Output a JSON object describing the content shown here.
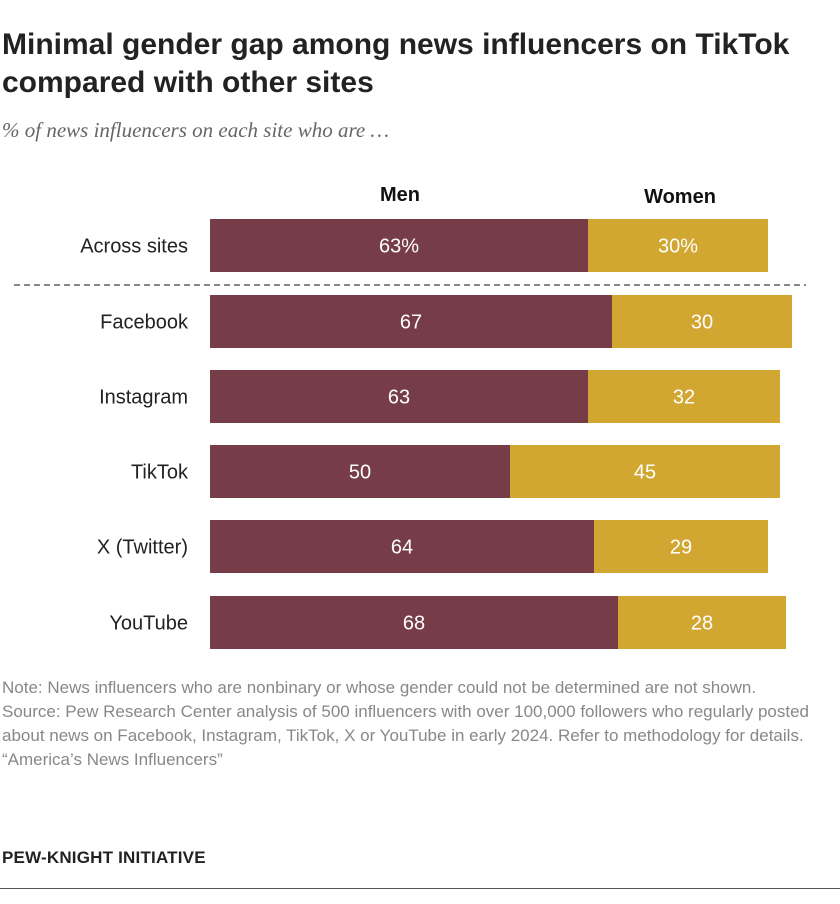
{
  "title": "Minimal gender gap among news influencers on TikTok compared with other sites",
  "subtitle": "% of news influencers on each site who are …",
  "colors": {
    "men": "#763d48",
    "women": "#d1a732",
    "label_on_bar": "#ffffff",
    "divider": "#888888"
  },
  "chart_data": {
    "type": "bar",
    "orientation": "horizontal",
    "stacked": true,
    "categories": [
      "Across sites",
      "Facebook",
      "Instagram",
      "TikTok",
      "X (Twitter)",
      "YouTube"
    ],
    "series": [
      {
        "name": "Men",
        "values": [
          63,
          67,
          63,
          50,
          64,
          68
        ],
        "labels": [
          "63%",
          "67",
          "63",
          "50",
          "64",
          "68"
        ]
      },
      {
        "name": "Women",
        "values": [
          30,
          30,
          32,
          45,
          29,
          28
        ],
        "labels": [
          "30%",
          "30",
          "32",
          "45",
          "29",
          "28"
        ]
      }
    ],
    "xlim": [
      0,
      100
    ],
    "legend": "top"
  },
  "notes": {
    "note": "Note: News influencers who are nonbinary or whose gender could not be determined are not shown.",
    "source": "Source: Pew Research Center analysis of 500 influencers with over 100,000 followers who regularly posted about news on Facebook, Instagram, TikTok, X or YouTube in early 2024. Refer to methodology for details.",
    "report": "“America’s News Influencers”"
  },
  "brand": "PEW-KNIGHT INITIATIVE"
}
